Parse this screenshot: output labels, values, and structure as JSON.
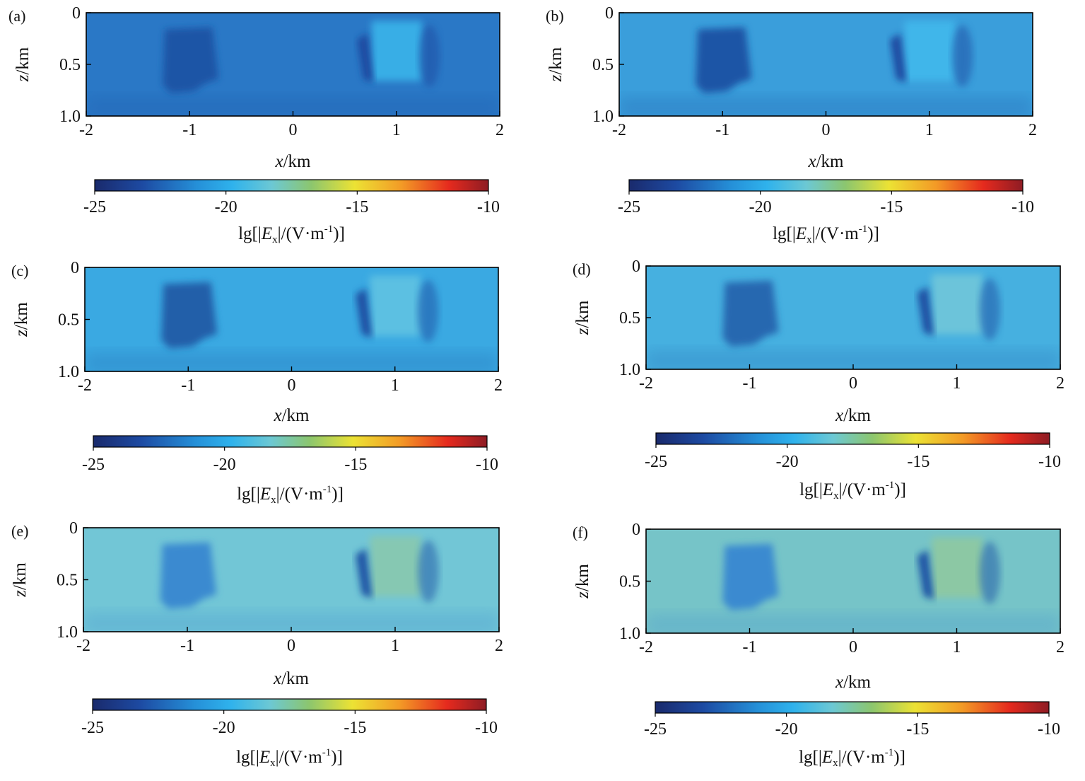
{
  "chart_data": [
    {
      "type": "heatmap",
      "panel_label": "(a)",
      "xlabel": {
        "var": "x",
        "unit": "/km"
      },
      "ylabel": {
        "var": "z",
        "unit": "/km"
      },
      "xlim": [
        -2,
        2
      ],
      "ylim": [
        0,
        1.0
      ],
      "xticks": [
        "-2",
        "-1",
        "0",
        "1",
        "2"
      ],
      "yticks": [
        "0",
        "0.5",
        "1.0"
      ],
      "y_inverted": true,
      "colorbar": {
        "range": [
          -25,
          -10
        ],
        "ticks": [
          "-25",
          "-20",
          "-15",
          "-10"
        ],
        "label": {
          "pre": "lg[|",
          "var": "E",
          "sub": "x",
          "post1": "|/(V·m",
          "sup": "-1",
          "post2": ")]"
        }
      },
      "field": {
        "background": "#2a78c6",
        "anomaly_left": "#1e55a6",
        "anomaly_right_edge": "#1a4aa0",
        "right_interior": "#38aee6"
      }
    },
    {
      "type": "heatmap",
      "panel_label": "(b)",
      "xlabel": {
        "var": "x",
        "unit": "/km"
      },
      "ylabel": {
        "var": "z",
        "unit": "/km"
      },
      "xlim": [
        -2,
        2
      ],
      "ylim": [
        0,
        1.0
      ],
      "xticks": [
        "-2",
        "-1",
        "0",
        "1",
        "2"
      ],
      "yticks": [
        "0",
        "0.5",
        "1.0"
      ],
      "y_inverted": true,
      "colorbar": {
        "range": [
          -25,
          -10
        ],
        "ticks": [
          "-25",
          "-20",
          "-15",
          "-10"
        ],
        "label": {
          "pre": "lg[|",
          "var": "E",
          "sub": "x",
          "post1": "|/(V·m",
          "sup": "-1",
          "post2": ")]"
        }
      },
      "field": {
        "background": "#3a9edb",
        "anomaly_left": "#1e55a6",
        "anomaly_right_edge": "#1a4aa0",
        "right_interior": "#40b6ea"
      }
    },
    {
      "type": "heatmap",
      "panel_label": "(c)",
      "xlabel": {
        "var": "x",
        "unit": "/km"
      },
      "ylabel": {
        "var": "z",
        "unit": "/km"
      },
      "xlim": [
        -2,
        2
      ],
      "ylim": [
        0,
        1.0
      ],
      "xticks": [
        "-2",
        "-1",
        "0",
        "1",
        "2"
      ],
      "yticks": [
        "0",
        "0.5",
        "1.0"
      ],
      "y_inverted": true,
      "colorbar": {
        "range": [
          -25,
          -10
        ],
        "ticks": [
          "-25",
          "-20",
          "-15",
          "-10"
        ],
        "label": {
          "pre": "lg[|",
          "var": "E",
          "sub": "x",
          "post1": "|/(V·m",
          "sup": "-1",
          "post2": ")]"
        }
      },
      "field": {
        "background": "#3aa9e2",
        "anomaly_left": "#235ea9",
        "anomaly_right_edge": "#1c4da1",
        "right_interior": "#5cc0e2"
      }
    },
    {
      "type": "heatmap",
      "panel_label": "(d)",
      "xlabel": {
        "var": "x",
        "unit": "/km"
      },
      "ylabel": {
        "var": "z",
        "unit": "/km"
      },
      "xlim": [
        -2,
        2
      ],
      "ylim": [
        0,
        1.0
      ],
      "xticks": [
        "-2",
        "-1",
        "0",
        "1",
        "2"
      ],
      "yticks": [
        "0",
        "0.5",
        "1.0"
      ],
      "y_inverted": true,
      "colorbar": {
        "range": [
          -25,
          -10
        ],
        "ticks": [
          "-25",
          "-20",
          "-15",
          "-10"
        ],
        "label": {
          "pre": "lg[|",
          "var": "E",
          "sub": "x",
          "post1": "|/(V·m",
          "sup": "-1",
          "post2": ")]"
        }
      },
      "field": {
        "background": "#46b0e0",
        "anomaly_left": "#2868b0",
        "anomaly_right_edge": "#1c4da1",
        "right_interior": "#6cc4da"
      }
    },
    {
      "type": "heatmap",
      "panel_label": "(e)",
      "xlabel": {
        "var": "x",
        "unit": "/km"
      },
      "ylabel": {
        "var": "z",
        "unit": "/km"
      },
      "xlim": [
        -2,
        2
      ],
      "ylim": [
        0,
        1.0
      ],
      "xticks": [
        "-2",
        "-1",
        "0",
        "1",
        "2"
      ],
      "yticks": [
        "0",
        "0.5",
        "1.0"
      ],
      "y_inverted": true,
      "colorbar": {
        "range": [
          -25,
          -10
        ],
        "ticks": [
          "-25",
          "-20",
          "-15",
          "-10"
        ],
        "label": {
          "pre": "lg[|",
          "var": "E",
          "sub": "x",
          "post1": "|/(V·m",
          "sup": "-1",
          "post2": ")]"
        }
      },
      "field": {
        "background": "#72c6d6",
        "anomaly_left": "#3a8ad0",
        "anomaly_right_edge": "#1d52a4",
        "right_interior": "#86c8b2"
      }
    },
    {
      "type": "heatmap",
      "panel_label": "(f)",
      "xlabel": {
        "var": "x",
        "unit": "/km"
      },
      "ylabel": {
        "var": "z",
        "unit": "/km"
      },
      "xlim": [
        -2,
        2
      ],
      "ylim": [
        0,
        1.0
      ],
      "xticks": [
        "-2",
        "-1",
        "0",
        "1",
        "2"
      ],
      "yticks": [
        "0",
        "0.5",
        "1.0"
      ],
      "y_inverted": true,
      "colorbar": {
        "range": [
          -25,
          -10
        ],
        "ticks": [
          "-25",
          "-20",
          "-15",
          "-10"
        ],
        "label": {
          "pre": "lg[|",
          "var": "E",
          "sub": "x",
          "post1": "|/(V·m",
          "sup": "-1",
          "post2": ")]"
        }
      },
      "field": {
        "background": "#76c4c8",
        "anomaly_left": "#3a8ad0",
        "anomaly_right_edge": "#1d52a4",
        "right_interior": "#8cc8a4"
      }
    }
  ]
}
